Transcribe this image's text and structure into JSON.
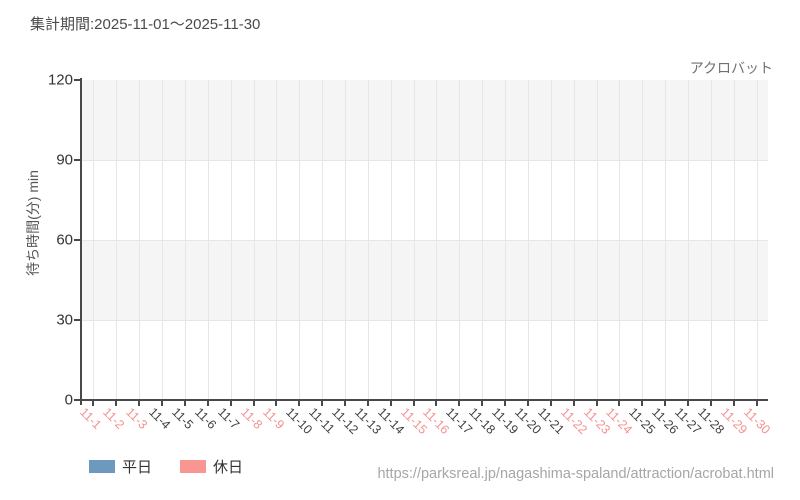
{
  "title": {
    "period": "集計期間:2025-11-01〜2025-11-30"
  },
  "attraction": {
    "name": "アクロバット"
  },
  "source": {
    "url": "https://parksreal.jp/nagashima-spaland/attraction/acrobat.html"
  },
  "legend": {
    "items": [
      {
        "label": "平日",
        "color": "#6e99be"
      },
      {
        "label": "休日",
        "color": "#fa9691"
      }
    ]
  },
  "colors": {
    "band": "#f5f5f5",
    "gridline": "#e6e6e6",
    "axis": "#494949",
    "y_tick_label": "#333333",
    "x_label_weekday": "#3f3f3f",
    "x_label_holiday": "#f59090",
    "title_text": "#4a4a4a",
    "attraction_text": "#707070",
    "y_axis_title_text": "#555555",
    "legend_text": "#333333",
    "url_text": "#a6a6a6"
  },
  "chart_data": {
    "type": "bar",
    "title": "アクロバット",
    "xlabel": "",
    "ylabel": "待ち時間(分) min",
    "ylim": [
      0,
      120
    ],
    "yticks": [
      0,
      30,
      60,
      90,
      120
    ],
    "grid": true,
    "legend_position": "bottom",
    "categories": [
      "11-1",
      "11-2",
      "11-3",
      "11-4",
      "11-5",
      "11-6",
      "11-7",
      "11-8",
      "11-9",
      "11-10",
      "11-11",
      "11-12",
      "11-13",
      "11-14",
      "11-15",
      "11-16",
      "11-17",
      "11-18",
      "11-19",
      "11-20",
      "11-21",
      "11-22",
      "11-23",
      "11-24",
      "11-25",
      "11-26",
      "11-27",
      "11-28",
      "11-29",
      "11-30"
    ],
    "holiday_categories": [
      "11-1",
      "11-2",
      "11-3",
      "11-8",
      "11-9",
      "11-15",
      "11-16",
      "11-22",
      "11-23",
      "11-24",
      "11-29",
      "11-30"
    ],
    "series": [
      {
        "name": "平日",
        "color": "#6e99be",
        "values": [
          null,
          null,
          null,
          null,
          null,
          null,
          null,
          null,
          null,
          null,
          null,
          null,
          null,
          null,
          null,
          null,
          null,
          null,
          null,
          null,
          null,
          null,
          null,
          null,
          null,
          null,
          null,
          null,
          null,
          null
        ]
      },
      {
        "name": "休日",
        "color": "#fa9691",
        "values": [
          null,
          null,
          null,
          null,
          null,
          null,
          null,
          null,
          null,
          null,
          null,
          null,
          null,
          null,
          null,
          null,
          null,
          null,
          null,
          null,
          null,
          null,
          null,
          null,
          null,
          null,
          null,
          null,
          null,
          null
        ]
      }
    ],
    "note": "Chart area is empty - no wait-time values plotted for this period"
  }
}
